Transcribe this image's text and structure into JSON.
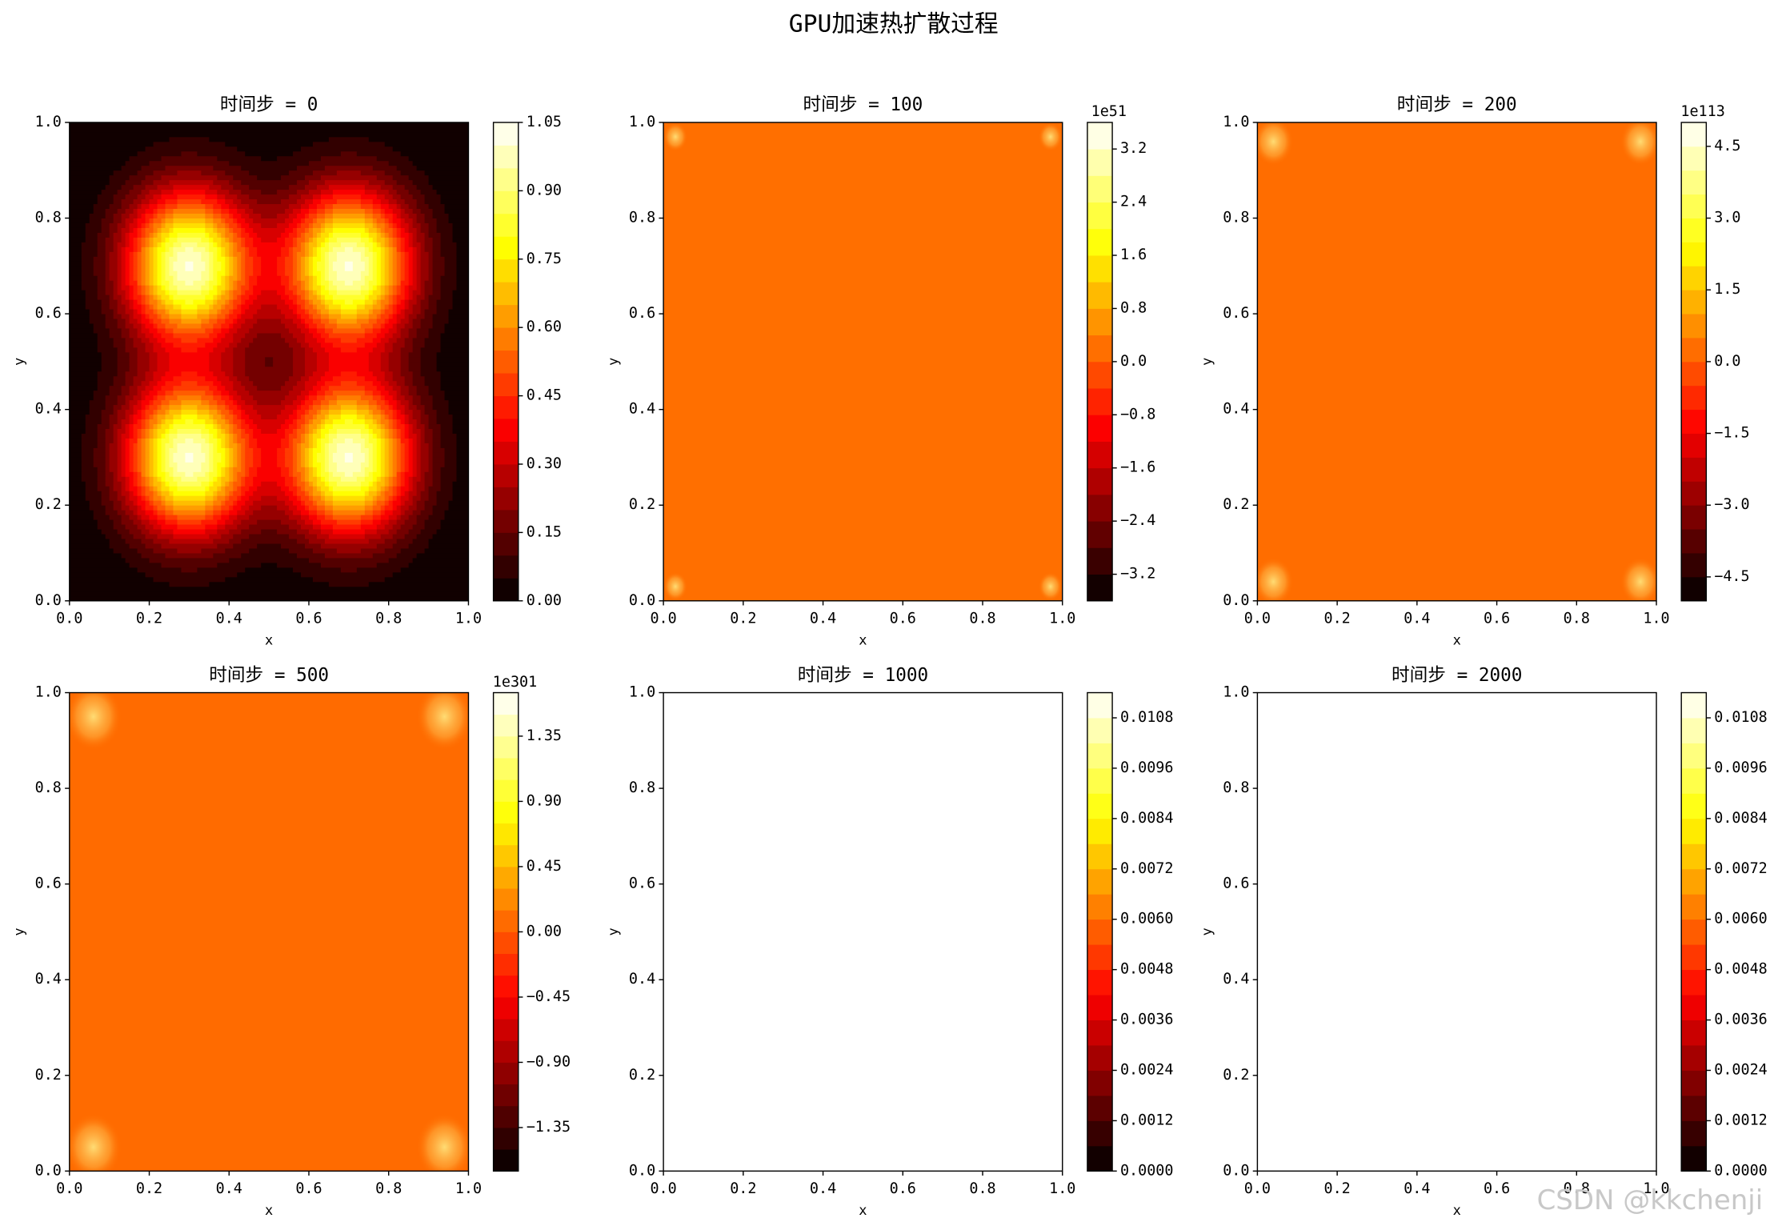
{
  "title": "GPU加速热扩散过程",
  "watermark": "CSDN @kkchenji",
  "chart_data": [
    {
      "type": "contour",
      "title": "时间步 = 0",
      "xlabel": "x",
      "ylabel": "y",
      "xlim": [
        0,
        1
      ],
      "ylim": [
        0,
        1
      ],
      "xticks": [
        {
          "value": 0,
          "label": "0.0"
        },
        0.2,
        0.4,
        0.6,
        0.8,
        {
          "value": 1,
          "label": "1.0"
        }
      ],
      "yticks": [
        {
          "value": 0,
          "label": "0.0"
        },
        0.2,
        0.4,
        0.6,
        0.8,
        {
          "value": 1,
          "label": "1.0"
        }
      ],
      "colormap": "hot",
      "clim": [
        0,
        1.05
      ],
      "level_step": 0.05,
      "cticks": [
        {
          "value": 0,
          "label": "0.00"
        },
        0.15,
        {
          "value": 0.3,
          "label": "0.30"
        },
        0.45,
        {
          "value": 0.6,
          "label": "0.60"
        },
        0.75,
        {
          "value": 0.9,
          "label": "0.90"
        },
        1.05
      ],
      "field": {
        "kind": "gaussians",
        "centers": [
          [
            0.3,
            0.3
          ],
          [
            0.7,
            0.3
          ],
          [
            0.3,
            0.7
          ],
          [
            0.7,
            0.7
          ]
        ],
        "amplitude": 1,
        "sigma": 0.11
      }
    },
    {
      "type": "contour",
      "title": "时间步 = 100",
      "xlabel": "x",
      "ylabel": "y",
      "xlim": [
        0,
        1
      ],
      "ylim": [
        0,
        1
      ],
      "xticks": [
        {
          "value": 0,
          "label": "0.0"
        },
        0.2,
        0.4,
        0.6,
        0.8,
        {
          "value": 1,
          "label": "1.0"
        }
      ],
      "yticks": [
        {
          "value": 0,
          "label": "0.0"
        },
        0.2,
        0.4,
        0.6,
        0.8,
        {
          "value": 1,
          "label": "1.0"
        }
      ],
      "colormap": "hot",
      "clim": [
        -3.6,
        3.6
      ],
      "level_step": 0.4,
      "offset_label": "1e51",
      "cticks": [
        {
          "value": -3.2,
          "label": "−3.2"
        },
        {
          "value": -2.4,
          "label": "−2.4"
        },
        {
          "value": -1.6,
          "label": "−1.6"
        },
        {
          "value": -0.8,
          "label": "−0.8"
        },
        {
          "value": 0,
          "label": "0.0"
        },
        0.8,
        1.6,
        2.4,
        3.2
      ],
      "field": {
        "kind": "uniform",
        "value": 0
      },
      "spots": [
        [
          0.03,
          0.03
        ],
        [
          0.97,
          0.03
        ],
        [
          0.03,
          0.97
        ],
        [
          0.97,
          0.97
        ]
      ],
      "spot_radius": 0.03
    },
    {
      "type": "contour",
      "title": "时间步 = 200",
      "xlabel": "x",
      "ylabel": "y",
      "xlim": [
        0,
        1
      ],
      "ylim": [
        0,
        1
      ],
      "xticks": [
        {
          "value": 0,
          "label": "0.0"
        },
        0.2,
        0.4,
        0.6,
        0.8,
        {
          "value": 1,
          "label": "1.0"
        }
      ],
      "yticks": [
        {
          "value": 0,
          "label": "0.0"
        },
        0.2,
        0.4,
        0.6,
        0.8,
        {
          "value": 1,
          "label": "1.0"
        }
      ],
      "colormap": "hot",
      "clim": [
        -5,
        5
      ],
      "level_step": 0.5,
      "offset_label": "1e113",
      "cticks": [
        {
          "value": -4.5,
          "label": "−4.5"
        },
        {
          "value": -3,
          "label": "−3.0"
        },
        {
          "value": -1.5,
          "label": "−1.5"
        },
        {
          "value": 0,
          "label": "0.0"
        },
        1.5,
        {
          "value": 3,
          "label": "3.0"
        },
        4.5
      ],
      "field": {
        "kind": "uniform",
        "value": 0
      },
      "spots": [
        [
          0.04,
          0.04
        ],
        [
          0.96,
          0.04
        ],
        [
          0.04,
          0.96
        ],
        [
          0.96,
          0.96
        ]
      ],
      "spot_radius": 0.05
    },
    {
      "type": "contour",
      "title": "时间步 = 500",
      "xlabel": "x",
      "ylabel": "y",
      "xlim": [
        0,
        1
      ],
      "ylim": [
        0,
        1
      ],
      "xticks": [
        {
          "value": 0,
          "label": "0.0"
        },
        0.2,
        0.4,
        0.6,
        0.8,
        {
          "value": 1,
          "label": "1.0"
        }
      ],
      "yticks": [
        {
          "value": 0,
          "label": "0.0"
        },
        0.2,
        0.4,
        0.6,
        0.8,
        {
          "value": 1,
          "label": "1.0"
        }
      ],
      "colormap": "hot",
      "clim": [
        -1.65,
        1.65
      ],
      "level_step": 0.15,
      "offset_label": "1e301",
      "cticks": [
        {
          "value": -1.35,
          "label": "−1.35"
        },
        {
          "value": -0.9,
          "label": "−0.90"
        },
        {
          "value": -0.45,
          "label": "−0.45"
        },
        {
          "value": 0,
          "label": "0.00"
        },
        0.45,
        {
          "value": 0.9,
          "label": "0.90"
        },
        1.35
      ],
      "field": {
        "kind": "uniform",
        "value": 0
      },
      "spots": [
        [
          0.06,
          0.05
        ],
        [
          0.94,
          0.05
        ],
        [
          0.06,
          0.95
        ],
        [
          0.94,
          0.95
        ]
      ],
      "spot_radius": 0.07
    },
    {
      "type": "contour",
      "title": "时间步 = 1000",
      "xlabel": "x",
      "ylabel": "y",
      "xlim": [
        0,
        1
      ],
      "ylim": [
        0,
        1
      ],
      "xticks": [
        {
          "value": 0,
          "label": "0.0"
        },
        0.2,
        0.4,
        0.6,
        0.8,
        {
          "value": 1,
          "label": "1.0"
        }
      ],
      "yticks": [
        {
          "value": 0,
          "label": "0.0"
        },
        0.2,
        0.4,
        0.6,
        0.8,
        {
          "value": 1,
          "label": "1.0"
        }
      ],
      "colormap": "hot",
      "clim": [
        0,
        0.0114
      ],
      "level_step": 0.0006,
      "cticks": [
        {
          "value": 0,
          "label": "0.0000"
        },
        0.0012,
        0.0024,
        0.0036,
        0.0048,
        {
          "value": 0.006,
          "label": "0.0060"
        },
        0.0072,
        0.0084,
        0.0096,
        0.0108
      ]
    },
    {
      "type": "contour",
      "title": "时间步 = 2000",
      "xlabel": "x",
      "ylabel": "y",
      "xlim": [
        0,
        1
      ],
      "ylim": [
        0,
        1
      ],
      "xticks": [
        {
          "value": 0,
          "label": "0.0"
        },
        0.2,
        0.4,
        0.6,
        0.8,
        {
          "value": 1,
          "label": "1.0"
        }
      ],
      "yticks": [
        {
          "value": 0,
          "label": "0.0"
        },
        0.2,
        0.4,
        0.6,
        0.8,
        {
          "value": 1,
          "label": "1.0"
        }
      ],
      "colormap": "hot",
      "clim": [
        0,
        0.0114
      ],
      "level_step": 0.0006,
      "cticks": [
        {
          "value": 0,
          "label": "0.0000"
        },
        0.0012,
        0.0024,
        0.0036,
        0.0048,
        {
          "value": 0.006,
          "label": "0.0060"
        },
        0.0072,
        0.0084,
        0.0096,
        0.0108
      ]
    }
  ]
}
